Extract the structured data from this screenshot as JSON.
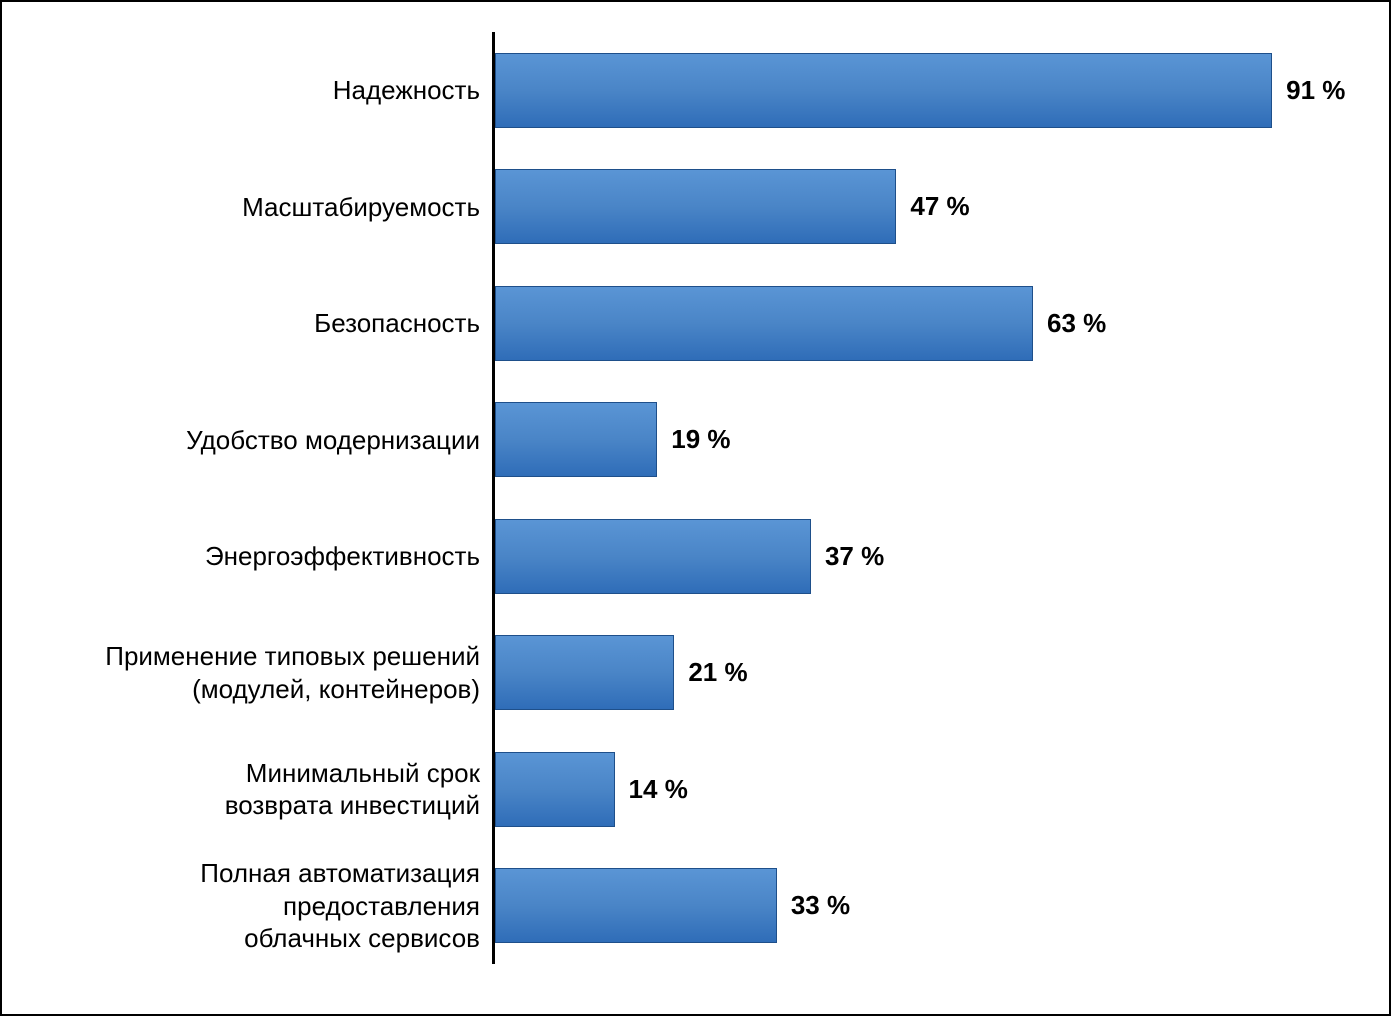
{
  "chart": {
    "type": "bar-horizontal",
    "background_color": "#ffffff",
    "frame_border_color": "#000000",
    "frame_border_width": 2,
    "axis_line_color": "#000000",
    "axis_line_width": 3,
    "label_fontsize": 26,
    "label_color": "#000000",
    "label_font_family": "Arial, Helvetica, sans-serif",
    "value_fontsize": 26,
    "value_font_weight": 700,
    "value_color": "#000000",
    "value_suffix": " %",
    "bar_gradient_top": "#5a95d5",
    "bar_gradient_mid": "#4a85c7",
    "bar_gradient_bottom": "#2f6db8",
    "bar_border_color": "#1e4f8a",
    "bar_height_pct": 64,
    "xlim": [
      0,
      100
    ],
    "items": [
      {
        "label": "Надежность",
        "value": 91,
        "value_text": "91 %"
      },
      {
        "label": "Масштабируемость",
        "value": 47,
        "value_text": "47 %"
      },
      {
        "label": "Безопасность",
        "value": 63,
        "value_text": "63 %"
      },
      {
        "label": "Удобство модернизации",
        "value": 19,
        "value_text": "19 %"
      },
      {
        "label": "Энергоэффективность",
        "value": 37,
        "value_text": "37 %"
      },
      {
        "label": "Применение типовых решений\n(модулей, контейнеров)",
        "value": 21,
        "value_text": "21 %"
      },
      {
        "label": "Минимальный срок\nвозврата инвестиций",
        "value": 14,
        "value_text": "14 %"
      },
      {
        "label": "Полная автоматизация\nпредоставления\nоблачных сервисов",
        "value": 33,
        "value_text": "33 %"
      }
    ]
  }
}
